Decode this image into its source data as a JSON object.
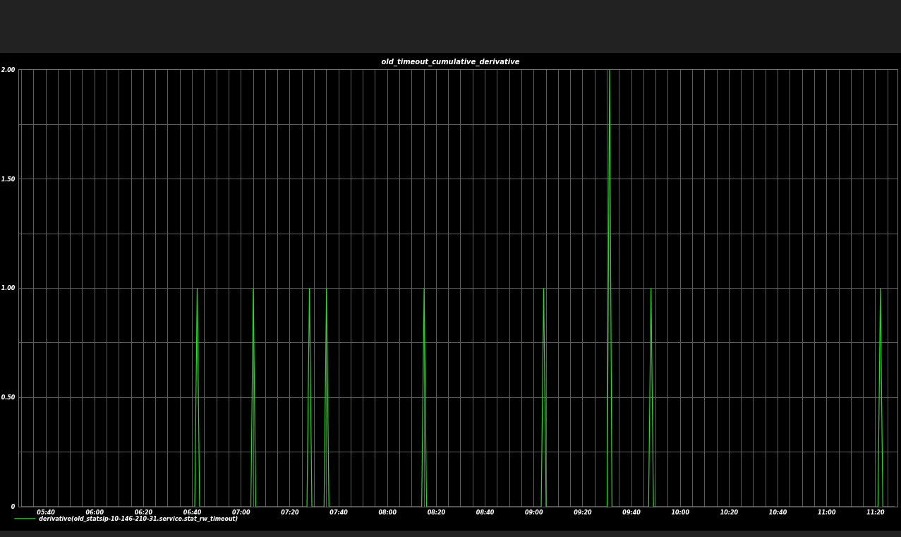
{
  "chart_data": {
    "type": "line",
    "title": "old_timeout_cumulative_derivative",
    "x": [
      5.5,
      6.6833,
      6.7,
      6.7167,
      7.0667,
      7.0833,
      7.1,
      7.45,
      7.4667,
      7.4833,
      7.5667,
      7.5833,
      7.6,
      8.2333,
      8.25,
      8.2667,
      9.05,
      9.0667,
      9.0833,
      9.5,
      9.5167,
      9.5333,
      9.7833,
      9.8,
      9.8167,
      11.35,
      11.3667,
      11.3833,
      11.4667
    ],
    "series": [
      {
        "name": "derivative(old_statsip-10-146-210-31.service.stat_rw_timeout)",
        "color": "#22dd22",
        "values": [
          0,
          0,
          1,
          0,
          0,
          1,
          0,
          0,
          1,
          0,
          0,
          1,
          0,
          0,
          1,
          0,
          0,
          1,
          0,
          0,
          2,
          0,
          0,
          1,
          0,
          0,
          1,
          0,
          0
        ]
      }
    ],
    "xlim": [
      5.4833,
      11.4833
    ],
    "xticks": [
      {
        "value": 5.5,
        "label": null
      },
      {
        "value": 5.5833,
        "label": null
      },
      {
        "value": 5.6667,
        "label": "05:40"
      },
      {
        "value": 5.75,
        "label": null
      },
      {
        "value": 5.8333,
        "label": null
      },
      {
        "value": 5.9167,
        "label": null
      },
      {
        "value": 6,
        "label": "06:00"
      },
      {
        "value": 6.0833,
        "label": null
      },
      {
        "value": 6.1667,
        "label": null
      },
      {
        "value": 6.25,
        "label": null
      },
      {
        "value": 6.3333,
        "label": "06:20"
      },
      {
        "value": 6.4167,
        "label": null
      },
      {
        "value": 6.5,
        "label": null
      },
      {
        "value": 6.5833,
        "label": null
      },
      {
        "value": 6.6667,
        "label": "06:40"
      },
      {
        "value": 6.75,
        "label": null
      },
      {
        "value": 6.8333,
        "label": null
      },
      {
        "value": 6.9167,
        "label": null
      },
      {
        "value": 7,
        "label": "07:00"
      },
      {
        "value": 7.0833,
        "label": null
      },
      {
        "value": 7.1667,
        "label": null
      },
      {
        "value": 7.25,
        "label": null
      },
      {
        "value": 7.3333,
        "label": "07:20"
      },
      {
        "value": 7.4167,
        "label": null
      },
      {
        "value": 7.5,
        "label": null
      },
      {
        "value": 7.5833,
        "label": null
      },
      {
        "value": 7.6667,
        "label": "07:40"
      },
      {
        "value": 7.75,
        "label": null
      },
      {
        "value": 7.8333,
        "label": null
      },
      {
        "value": 7.9167,
        "label": null
      },
      {
        "value": 8,
        "label": "08:00"
      },
      {
        "value": 8.0833,
        "label": null
      },
      {
        "value": 8.1667,
        "label": null
      },
      {
        "value": 8.25,
        "label": null
      },
      {
        "value": 8.3333,
        "label": "08:20"
      },
      {
        "value": 8.4167,
        "label": null
      },
      {
        "value": 8.5,
        "label": null
      },
      {
        "value": 8.5833,
        "label": null
      },
      {
        "value": 8.6667,
        "label": "08:40"
      },
      {
        "value": 8.75,
        "label": null
      },
      {
        "value": 8.8333,
        "label": null
      },
      {
        "value": 8.9167,
        "label": null
      },
      {
        "value": 9,
        "label": "09:00"
      },
      {
        "value": 9.0833,
        "label": null
      },
      {
        "value": 9.1667,
        "label": null
      },
      {
        "value": 9.25,
        "label": null
      },
      {
        "value": 9.3333,
        "label": "09:20"
      },
      {
        "value": 9.4167,
        "label": null
      },
      {
        "value": 9.5,
        "label": null
      },
      {
        "value": 9.5833,
        "label": null
      },
      {
        "value": 9.6667,
        "label": "09:40"
      },
      {
        "value": 9.75,
        "label": null
      },
      {
        "value": 9.8333,
        "label": null
      },
      {
        "value": 9.9167,
        "label": null
      },
      {
        "value": 10,
        "label": "10:00"
      },
      {
        "value": 10.0833,
        "label": null
      },
      {
        "value": 10.1667,
        "label": null
      },
      {
        "value": 10.25,
        "label": null
      },
      {
        "value": 10.3333,
        "label": "10:20"
      },
      {
        "value": 10.4167,
        "label": null
      },
      {
        "value": 10.5,
        "label": null
      },
      {
        "value": 10.5833,
        "label": null
      },
      {
        "value": 10.6667,
        "label": "10:40"
      },
      {
        "value": 10.75,
        "label": null
      },
      {
        "value": 10.8333,
        "label": null
      },
      {
        "value": 10.9167,
        "label": null
      },
      {
        "value": 11,
        "label": "11:00"
      },
      {
        "value": 11.0833,
        "label": null
      },
      {
        "value": 11.1667,
        "label": null
      },
      {
        "value": 11.25,
        "label": null
      },
      {
        "value": 11.3333,
        "label": "11:20"
      },
      {
        "value": 11.4167,
        "label": null
      }
    ],
    "ylim": [
      0,
      2
    ],
    "yticks": [
      0,
      {
        "value": 0.25,
        "label": null
      },
      {
        "value": 0.5,
        "label": "0.50"
      },
      {
        "value": 0.75,
        "label": null
      },
      {
        "value": 1,
        "label": "1.00"
      },
      {
        "value": 1.25,
        "label": null
      },
      {
        "value": 1.5,
        "label": "1.50"
      },
      {
        "value": 1.75,
        "label": null
      },
      {
        "value": 2,
        "label": "2.00"
      }
    ],
    "grid": true,
    "legend": "bottom left",
    "marker": "none",
    "line_style": "solid"
  }
}
